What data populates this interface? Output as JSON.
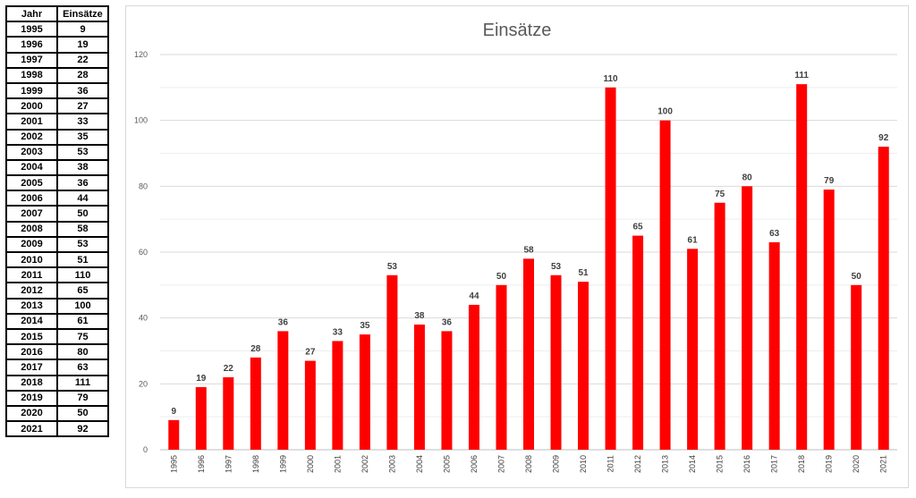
{
  "table": {
    "headers": [
      "Jahr",
      "Einsätze"
    ],
    "rows": [
      [
        "1995",
        "9"
      ],
      [
        "1996",
        "19"
      ],
      [
        "1997",
        "22"
      ],
      [
        "1998",
        "28"
      ],
      [
        "1999",
        "36"
      ],
      [
        "2000",
        "27"
      ],
      [
        "2001",
        "33"
      ],
      [
        "2002",
        "35"
      ],
      [
        "2003",
        "53"
      ],
      [
        "2004",
        "38"
      ],
      [
        "2005",
        "36"
      ],
      [
        "2006",
        "44"
      ],
      [
        "2007",
        "50"
      ],
      [
        "2008",
        "58"
      ],
      [
        "2009",
        "53"
      ],
      [
        "2010",
        "51"
      ],
      [
        "2011",
        "110"
      ],
      [
        "2012",
        "65"
      ],
      [
        "2013",
        "100"
      ],
      [
        "2014",
        "61"
      ],
      [
        "2015",
        "75"
      ],
      [
        "2016",
        "80"
      ],
      [
        "2017",
        "63"
      ],
      [
        "2018",
        "111"
      ],
      [
        "2019",
        "79"
      ],
      [
        "2020",
        "50"
      ],
      [
        "2021",
        "92"
      ]
    ]
  },
  "chart_data": {
    "type": "bar",
    "title": "Einsätze",
    "xlabel": "",
    "ylabel": "",
    "categories": [
      "1995",
      "1996",
      "1997",
      "1998",
      "1999",
      "2000",
      "2001",
      "2002",
      "2003",
      "2004",
      "2005",
      "2006",
      "2007",
      "2008",
      "2009",
      "2010",
      "2011",
      "2012",
      "2013",
      "2014",
      "2015",
      "2016",
      "2017",
      "2018",
      "2019",
      "2020",
      "2021"
    ],
    "values": [
      9,
      19,
      22,
      28,
      36,
      27,
      33,
      35,
      53,
      38,
      36,
      44,
      50,
      58,
      53,
      51,
      110,
      65,
      100,
      61,
      75,
      80,
      63,
      111,
      79,
      50,
      92
    ],
    "ylim": [
      0,
      120
    ],
    "yticks": [
      0,
      20,
      40,
      60,
      80,
      100,
      120
    ],
    "grid": true,
    "data_labels": true,
    "legend": "none",
    "bar_color": "#ff0000"
  }
}
